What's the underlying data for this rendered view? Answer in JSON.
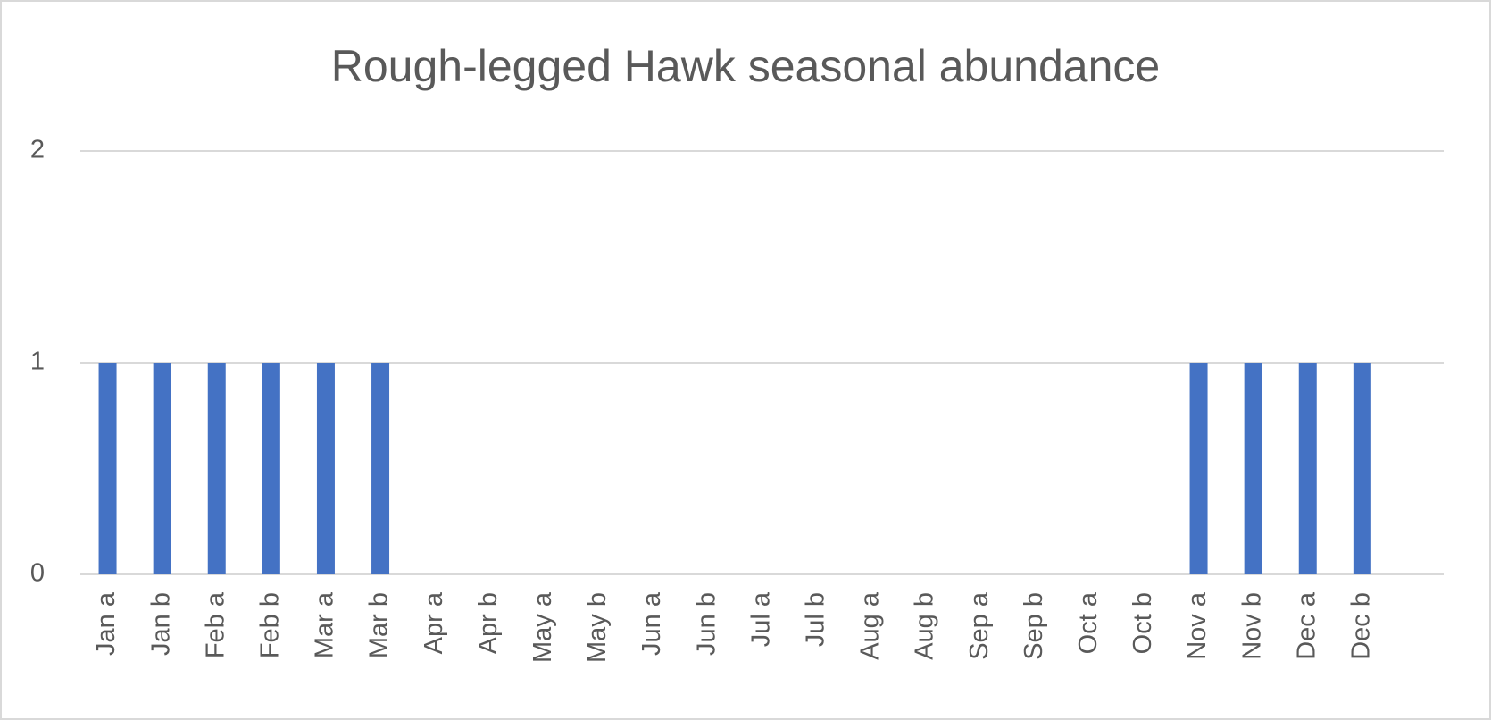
{
  "chart_data": {
    "type": "bar",
    "title": "Rough-legged Hawk seasonal abundance",
    "categories": [
      "Jan a",
      "Jan b",
      "Feb a",
      "Feb b",
      "Mar a",
      "Mar b",
      "Apr a",
      "Apr b",
      "May a",
      "May b",
      "Jun a",
      "Jun b",
      "Jul a",
      "Jul b",
      "Aug a",
      "Aug b",
      "Sep a",
      "Sep b",
      "Oct a",
      "Oct b",
      "Nov a",
      "Nov b",
      "Dec a",
      "Dec b"
    ],
    "values": [
      1,
      1,
      1,
      1,
      1,
      1,
      0,
      0,
      0,
      0,
      0,
      0,
      0,
      0,
      0,
      0,
      0,
      0,
      0,
      0,
      1,
      1,
      1,
      1
    ],
    "color": "#4472c4",
    "ylim": [
      0,
      2
    ],
    "yticks": [
      0,
      1,
      2
    ],
    "grid": true
  }
}
